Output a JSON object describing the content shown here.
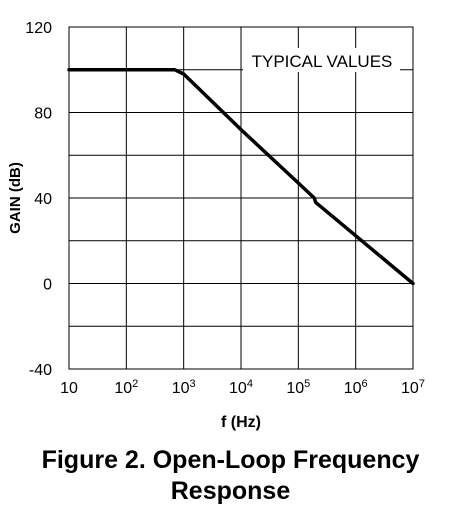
{
  "chart_data": {
    "type": "line",
    "title": "",
    "annotation": "TYPICAL VALUES",
    "xlabel": "f (Hz)",
    "ylabel": "GAIN (dB)",
    "xscale": "log",
    "xlim": [
      10,
      10000000
    ],
    "ylim": [
      -40,
      120
    ],
    "grid": true,
    "x_ticks": [
      {
        "value": 10,
        "base": "10",
        "exp": ""
      },
      {
        "value": 100,
        "base": "10",
        "exp": "2"
      },
      {
        "value": 1000,
        "base": "10",
        "exp": "3"
      },
      {
        "value": 10000,
        "base": "10",
        "exp": "4"
      },
      {
        "value": 100000,
        "base": "10",
        "exp": "5"
      },
      {
        "value": 1000000,
        "base": "10",
        "exp": "6"
      },
      {
        "value": 10000000,
        "base": "10",
        "exp": "7"
      }
    ],
    "y_ticks": [
      {
        "value": 120,
        "label": "120"
      },
      {
        "value": 80,
        "label": "80"
      },
      {
        "value": 40,
        "label": "40"
      },
      {
        "value": 0,
        "label": "0"
      },
      {
        "value": -40,
        "label": "-40"
      }
    ],
    "series": [
      {
        "x": [
          10,
          700,
          1000,
          10000,
          100000,
          190000,
          200000,
          10000000
        ],
        "y": [
          100,
          100,
          98,
          72,
          47,
          40,
          38,
          0
        ]
      }
    ]
  },
  "caption": {
    "line1": "Figure 2. Open-Loop Frequency",
    "line2": "Response"
  },
  "colors": {
    "line": "#000000",
    "grid": "#000000",
    "background": "#ffffff"
  }
}
